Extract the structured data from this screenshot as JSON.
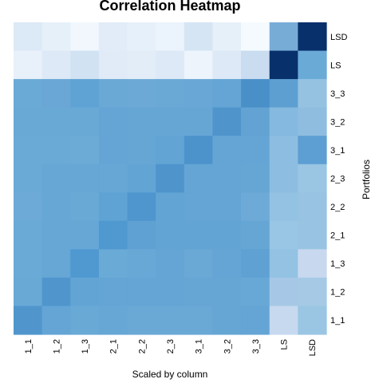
{
  "chart_data": {
    "type": "heatmap",
    "title": "Correlation Heatmap",
    "xlabel": "Scaled by column",
    "ylabel": "Portfolios",
    "x_categories": [
      "1_1",
      "1_2",
      "1_3",
      "2_1",
      "2_2",
      "2_3",
      "3_1",
      "3_2",
      "3_3",
      "LS",
      "LSD"
    ],
    "y_categories_top_to_bottom": [
      "LSD",
      "LS",
      "3_3",
      "3_2",
      "3_1",
      "2_3",
      "2_2",
      "2_1",
      "1_3",
      "1_2",
      "1_1"
    ],
    "color_scale": {
      "low": "#f7fbff",
      "high": "#08306b",
      "palette": "Blues"
    },
    "scaled_by": "column",
    "cell_colors_top_to_bottom": [
      [
        "#dce9f6",
        "#e6f0f9",
        "#f1f7fd",
        "#e1ecf8",
        "#e6f0fa",
        "#ebf3fc",
        "#d6e5f4",
        "#e6f0f9",
        "#f5fafe",
        "#77acd7",
        "#08306b"
      ],
      [
        "#e8f1fa",
        "#dde9f6",
        "#d1e2f3",
        "#e0ebf7",
        "#e2edf8",
        "#dde9f6",
        "#edf4fc",
        "#dde9f6",
        "#c9dcf0",
        "#08306b",
        "#6aaad7"
      ],
      [
        "#6aaad7",
        "#6aa7d6",
        "#5fa3d4",
        "#6aa8d6",
        "#6da9d6",
        "#6aa8d6",
        "#68a7d6",
        "#64a5d5",
        "#4a90c8",
        "#5d9fd1",
        "#96c2e2"
      ],
      [
        "#68a9d6",
        "#68a9d6",
        "#68a9d6",
        "#64a5d5",
        "#66a6d5",
        "#66a6d5",
        "#66a6d5",
        "#4f95cc",
        "#62a3d4",
        "#85b9df",
        "#8fbde0"
      ],
      [
        "#6aaad7",
        "#6aaad7",
        "#6dabd7",
        "#64a5d5",
        "#66a6d5",
        "#62a4d4",
        "#4d93cb",
        "#64a5d5",
        "#64a5d5",
        "#8dbde1",
        "#5d9fd3"
      ],
      [
        "#6aaad7",
        "#66a7d6",
        "#66a7d6",
        "#66a7d6",
        "#62a4d4",
        "#4f95cc",
        "#64a5d5",
        "#64a5d5",
        "#66a6d5",
        "#8dbde1",
        "#9ac6e3"
      ],
      [
        "#6daad7",
        "#66a7d6",
        "#68a9d6",
        "#5fa3d4",
        "#4f96ce",
        "#62a4d4",
        "#64a5d5",
        "#64a5d5",
        "#6daad7",
        "#93c2e3",
        "#98c3e2"
      ],
      [
        "#6aaad7",
        "#66a7d6",
        "#66a7d6",
        "#4f99d0",
        "#5fa1d3",
        "#62a4d4",
        "#62a4d4",
        "#62a4d4",
        "#66a6d5",
        "#98c6e4",
        "#98c3e2"
      ],
      [
        "#6aaad7",
        "#66a7d6",
        "#4f99d0",
        "#6aaad7",
        "#68a8d6",
        "#64a5d5",
        "#6aa8d6",
        "#64a5d5",
        "#5fa1d3",
        "#93c2e3",
        "#c8d8ee"
      ],
      [
        "#68a9d6",
        "#5096cd",
        "#62a4d4",
        "#64a5d5",
        "#64a5d5",
        "#64a5d5",
        "#66a6d5",
        "#66a6d5",
        "#68a8d6",
        "#a6c8e6",
        "#a6cae6"
      ],
      [
        "#5096cd",
        "#64a5d5",
        "#68a9d6",
        "#66a7d6",
        "#6aa8d6",
        "#6aa8d6",
        "#6aa8d6",
        "#66a6d5",
        "#64a5d5",
        "#c6d9ef",
        "#9ac6e3"
      ]
    ],
    "legend": "none",
    "grid": false
  }
}
